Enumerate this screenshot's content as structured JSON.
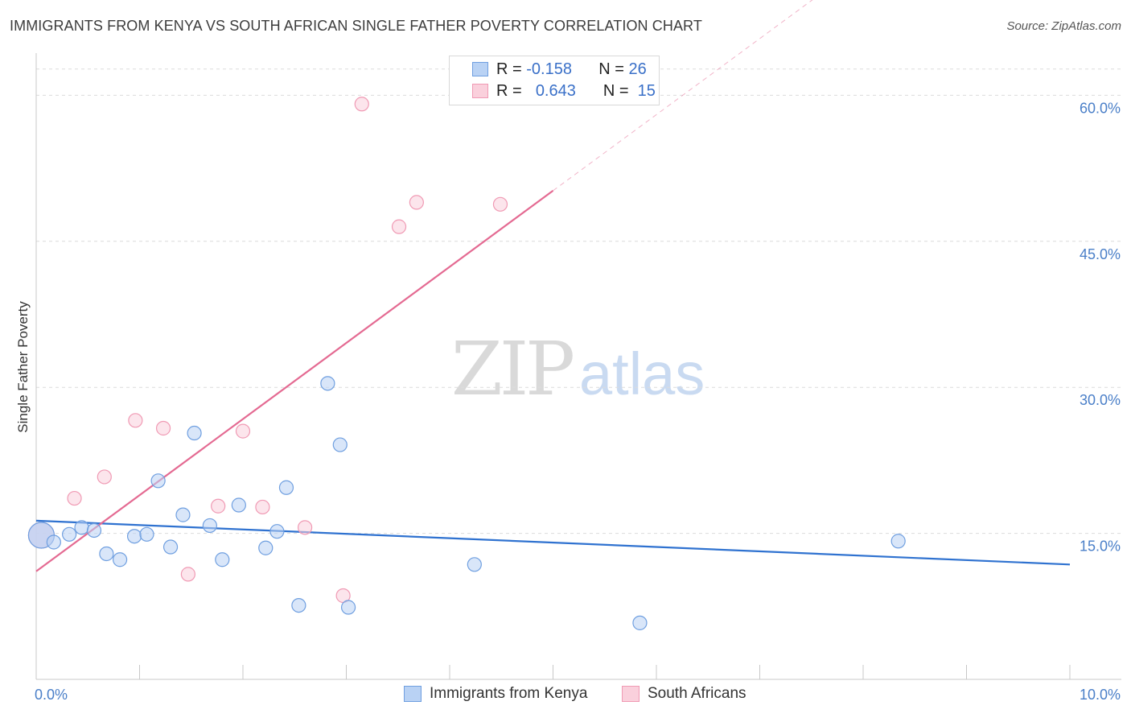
{
  "chart_data": {
    "type": "scatter",
    "title": "IMMIGRANTS FROM KENYA VS SOUTH AFRICAN SINGLE FATHER POVERTY CORRELATION CHART",
    "source": "Source: ZipAtlas.com",
    "ylabel": "Single Father Poverty",
    "xlabel": "",
    "xlim": [
      0,
      10
    ],
    "ylim": [
      0,
      64
    ],
    "y_ticks": [
      15,
      30,
      45,
      60
    ],
    "y_tick_labels": [
      "15.0%",
      "30.0%",
      "45.0%",
      "60.0%"
    ],
    "x_tick_labels": [
      "0.0%",
      "10.0%"
    ],
    "grid": true,
    "watermark": {
      "zip": "ZIP",
      "atlas": "atlas"
    },
    "series": [
      {
        "name": "Immigrants from Kenya",
        "color": "#6f9fe0",
        "fill": "#b9d2f4",
        "trend_color": "#2f72d0",
        "R": "-0.158",
        "N": "26",
        "trend": {
          "x": [
            0,
            10
          ],
          "y": [
            16.3,
            11.8
          ]
        },
        "points": [
          {
            "x": 0.05,
            "y": 14.8,
            "big": true
          },
          {
            "x": 0.17,
            "y": 14.1
          },
          {
            "x": 0.32,
            "y": 14.9
          },
          {
            "x": 0.44,
            "y": 15.6
          },
          {
            "x": 0.56,
            "y": 15.3
          },
          {
            "x": 0.68,
            "y": 12.9
          },
          {
            "x": 0.81,
            "y": 12.3
          },
          {
            "x": 0.95,
            "y": 14.7
          },
          {
            "x": 1.07,
            "y": 14.9
          },
          {
            "x": 1.18,
            "y": 20.4
          },
          {
            "x": 1.3,
            "y": 13.6
          },
          {
            "x": 1.42,
            "y": 16.9
          },
          {
            "x": 1.53,
            "y": 25.3
          },
          {
            "x": 1.68,
            "y": 15.8
          },
          {
            "x": 1.8,
            "y": 12.3
          },
          {
            "x": 1.96,
            "y": 17.9
          },
          {
            "x": 2.22,
            "y": 13.5
          },
          {
            "x": 2.33,
            "y": 15.2
          },
          {
            "x": 2.42,
            "y": 19.7
          },
          {
            "x": 2.54,
            "y": 7.6
          },
          {
            "x": 2.82,
            "y": 30.4
          },
          {
            "x": 2.94,
            "y": 24.1
          },
          {
            "x": 3.02,
            "y": 7.4
          },
          {
            "x": 4.24,
            "y": 11.8
          },
          {
            "x": 5.84,
            "y": 5.8
          },
          {
            "x": 8.34,
            "y": 14.2
          }
        ]
      },
      {
        "name": "South Africans",
        "color": "#f09ab4",
        "fill": "#fad0dc",
        "trend_color": "#e46a92",
        "R": "0.643",
        "N": "15",
        "trend": {
          "x": [
            0,
            5
          ],
          "y": [
            11.1,
            50.2
          ]
        },
        "trend_ext": {
          "x": [
            5,
            8.2
          ],
          "y": [
            50.2,
            75.2
          ]
        },
        "points": [
          {
            "x": 0.05,
            "y": 14.8,
            "big": true
          },
          {
            "x": 0.37,
            "y": 18.6
          },
          {
            "x": 0.66,
            "y": 20.8
          },
          {
            "x": 0.96,
            "y": 26.6
          },
          {
            "x": 1.23,
            "y": 25.8
          },
          {
            "x": 1.47,
            "y": 10.8
          },
          {
            "x": 1.76,
            "y": 17.8
          },
          {
            "x": 2.0,
            "y": 25.5
          },
          {
            "x": 2.19,
            "y": 17.7
          },
          {
            "x": 2.6,
            "y": 15.6
          },
          {
            "x": 2.97,
            "y": 8.6
          },
          {
            "x": 3.15,
            "y": 59.1
          },
          {
            "x": 3.51,
            "y": 46.5
          },
          {
            "x": 3.68,
            "y": 49.0
          },
          {
            "x": 4.49,
            "y": 48.8
          }
        ]
      }
    ]
  },
  "legend": {
    "r_label": "R =",
    "n_label": "N ="
  }
}
